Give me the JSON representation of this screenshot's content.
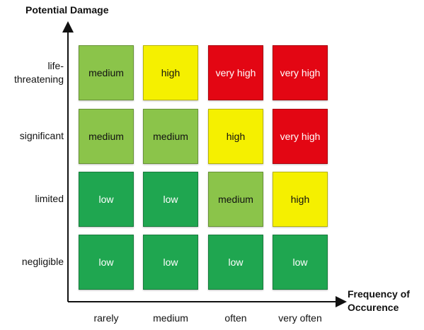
{
  "y_axis_title": "Potential Damage",
  "x_axis_title": "Frequency of Occurence",
  "rows": [
    "life-threatening",
    "significant",
    "limited",
    "negligible"
  ],
  "columns": [
    "rarely",
    "medium",
    "often",
    "very often"
  ],
  "levels": {
    "low": {
      "color": "#1fa650",
      "text_color": "#ffffff"
    },
    "medium": {
      "color": "#8bc44a",
      "text_color": "#111111"
    },
    "high": {
      "color": "#f5f000",
      "text_color": "#111111"
    },
    "very high": {
      "color": "#e30613",
      "text_color": "#ffffff"
    }
  },
  "matrix": [
    [
      "medium",
      "high",
      "very high",
      "very high"
    ],
    [
      "medium",
      "medium",
      "high",
      "very high"
    ],
    [
      "low",
      "low",
      "medium",
      "high"
    ],
    [
      "low",
      "low",
      "low",
      "low"
    ]
  ]
}
